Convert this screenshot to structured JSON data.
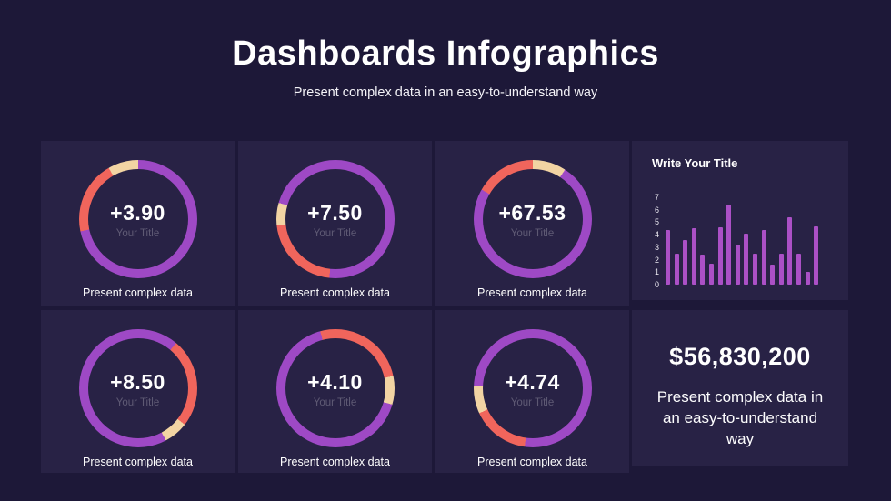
{
  "header": {
    "title": "Dashboards Infographics",
    "subtitle": "Present complex data in an easy-to-understand way"
  },
  "palette": {
    "background": "#1d1838",
    "card": "#282245",
    "purple": "#9e49c5",
    "coral": "#f0655c",
    "cream": "#f2d4a3",
    "bar": "#ab50c6",
    "muted_label": "rgba(255,255,255,0.25)"
  },
  "chart_data": [
    {
      "type": "donut",
      "value": "+3.90",
      "label": "Your Title",
      "caption": "Present complex data",
      "segments": [
        {
          "color": "purple",
          "from": 0,
          "to": 258
        },
        {
          "color": "coral",
          "from": 258,
          "to": 330
        },
        {
          "color": "cream",
          "from": 330,
          "to": 360
        }
      ]
    },
    {
      "type": "donut",
      "value": "+7.50",
      "label": "Your Title",
      "caption": "Present complex data",
      "segments": [
        {
          "color": "purple",
          "from": 0,
          "to": 186
        },
        {
          "color": "coral",
          "from": 186,
          "to": 264
        },
        {
          "color": "cream",
          "from": 264,
          "to": 286
        },
        {
          "color": "purple",
          "from": 286,
          "to": 360
        }
      ]
    },
    {
      "type": "donut",
      "value": "+67.53",
      "label": "Your Title",
      "caption": "Present complex data",
      "segments": [
        {
          "color": "cream",
          "from": 0,
          "to": 33
        },
        {
          "color": "purple",
          "from": 33,
          "to": 300
        },
        {
          "color": "coral",
          "from": 300,
          "to": 360
        }
      ]
    },
    {
      "type": "donut",
      "value": "+8.50",
      "label": "Your Title",
      "caption": "Present complex data",
      "segments": [
        {
          "color": "purple",
          "from": 0,
          "to": 40
        },
        {
          "color": "coral",
          "from": 40,
          "to": 128
        },
        {
          "color": "cream",
          "from": 128,
          "to": 152
        },
        {
          "color": "purple",
          "from": 152,
          "to": 360
        }
      ]
    },
    {
      "type": "donut",
      "value": "+4.10",
      "label": "Your Title",
      "caption": "Present complex data",
      "segments": [
        {
          "color": "coral",
          "from": 0,
          "to": 78
        },
        {
          "color": "cream",
          "from": 78,
          "to": 106
        },
        {
          "color": "purple",
          "from": 106,
          "to": 345
        },
        {
          "color": "coral",
          "from": 345,
          "to": 360
        }
      ]
    },
    {
      "type": "donut",
      "value": "+4.74",
      "label": "Your Title",
      "caption": "Present complex data",
      "segments": [
        {
          "color": "purple",
          "from": 0,
          "to": 188
        },
        {
          "color": "coral",
          "from": 188,
          "to": 245
        },
        {
          "color": "cream",
          "from": 245,
          "to": 272
        },
        {
          "color": "purple",
          "from": 272,
          "to": 360
        }
      ]
    },
    {
      "type": "bar",
      "title": "Write Your Title",
      "values": [
        4.4,
        2.5,
        3.6,
        4.5,
        2.4,
        1.7,
        4.6,
        6.4,
        3.2,
        4.1,
        2.5,
        4.4,
        1.6,
        2.5,
        5.4,
        2.5,
        1.0,
        4.7
      ],
      "ylabels": [
        "7",
        "6",
        "5",
        "4",
        "3",
        "2",
        "1",
        "0"
      ],
      "ylim": [
        0,
        7
      ],
      "grid": false,
      "legend": false
    }
  ],
  "stat_card": {
    "value": "$56,830,200",
    "text": "Present complex data in an easy-to-understand way"
  }
}
